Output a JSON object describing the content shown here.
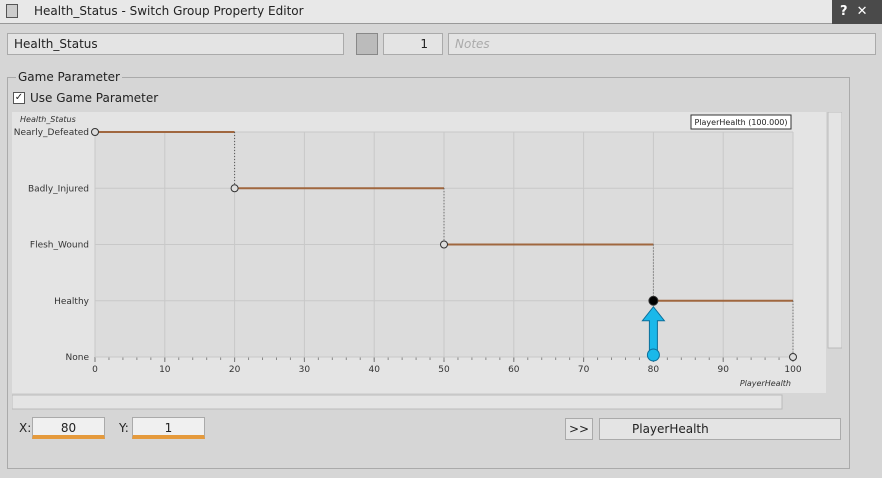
{
  "window": {
    "title": "Health_Status - Switch Group Property Editor",
    "name": "Health_Status",
    "reference_count": "1",
    "notes_placeholder": "Notes",
    "group_label": "Game Parameter",
    "checkbox_label": "Use Game Parameter",
    "x_label": "X:",
    "x_value": "80",
    "y_label": "Y:",
    "y_value": "1",
    "expand_button": ">>",
    "game_parameter": "PlayerHealth"
  },
  "chart_data": {
    "type": "step",
    "y_axis_label": "Health_Status",
    "x_axis_label": "PlayerHealth",
    "annotation": "PlayerHealth (100.000)",
    "x": [
      0,
      20,
      50,
      80,
      100
    ],
    "values": [
      4,
      3,
      2,
      1,
      0
    ],
    "selected_index": 3,
    "color": "#a0673f",
    "xlim": [
      0,
      100
    ],
    "xticks": [
      0,
      10,
      20,
      30,
      40,
      50,
      60,
      70,
      80,
      90,
      100
    ],
    "ylim": [
      0,
      4
    ],
    "yticks": [
      {
        "value": 0,
        "label": "None"
      },
      {
        "value": 1,
        "label": "Healthy"
      },
      {
        "value": 2,
        "label": "Flesh_Wound"
      },
      {
        "value": 3,
        "label": "Badly_Injured"
      },
      {
        "value": 4,
        "label": "Nearly_Defeated"
      }
    ],
    "grid": true
  }
}
